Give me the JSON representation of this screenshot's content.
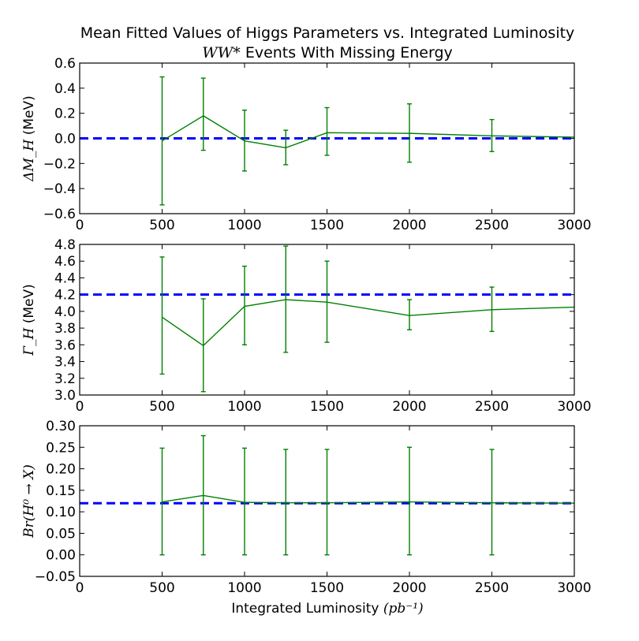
{
  "title": {
    "line1": "Mean Fitted Values of Higgs Parameters vs. Integrated Luminosity",
    "line2_math": "WW*",
    "line2_text": " Events With Missing Energy"
  },
  "xlabel_text": "Integrated Luminosity ",
  "xlabel_math": "(pb⁻¹)",
  "colors": {
    "series": "#008000",
    "reference": "#0000ff"
  },
  "chart_data": [
    {
      "type": "line",
      "error_bars": true,
      "ylabel_math": "ΔM_H",
      "ylabel_unit": "(MeV)",
      "x": [
        500,
        750,
        1000,
        1250,
        1500,
        2000,
        2500,
        3000
      ],
      "y": [
        -0.02,
        0.18,
        -0.02,
        -0.075,
        0.045,
        0.04,
        0.02,
        0.01
      ],
      "err_low": [
        -0.53,
        -0.095,
        -0.26,
        -0.21,
        -0.135,
        -0.19,
        -0.105,
        null
      ],
      "err_high": [
        0.49,
        0.48,
        0.225,
        0.065,
        0.245,
        0.275,
        0.15,
        null
      ],
      "reference": 0.0,
      "xlim": [
        0,
        3000
      ],
      "ylim": [
        -0.6,
        0.6
      ],
      "yticks": [
        -0.6,
        -0.4,
        -0.2,
        0.0,
        0.2,
        0.4,
        0.6
      ],
      "ytick_labels": [
        "−0.6",
        "−0.4",
        "−0.2",
        "0.0",
        "0.2",
        "0.4",
        "0.6"
      ],
      "xticks": [
        0,
        500,
        1000,
        1500,
        2000,
        2500,
        3000
      ],
      "xtick_labels": [
        "0",
        "500",
        "1000",
        "1500",
        "2000",
        "2500",
        "3000"
      ]
    },
    {
      "type": "line",
      "error_bars": true,
      "ylabel_math": "Γ_H",
      "ylabel_unit": "(MeV)",
      "x": [
        500,
        750,
        1000,
        1250,
        1500,
        2000,
        2500,
        3000
      ],
      "y": [
        3.93,
        3.59,
        4.06,
        4.14,
        4.11,
        3.95,
        4.02,
        4.05
      ],
      "err_low": [
        3.25,
        3.04,
        3.6,
        3.51,
        3.63,
        3.78,
        3.76,
        null
      ],
      "err_high": [
        4.65,
        4.15,
        4.54,
        4.78,
        4.6,
        4.14,
        4.29,
        null
      ],
      "reference": 4.2,
      "xlim": [
        0,
        3000
      ],
      "ylim": [
        3.0,
        4.8
      ],
      "yticks": [
        3.0,
        3.2,
        3.4,
        3.6,
        3.8,
        4.0,
        4.2,
        4.4,
        4.6,
        4.8
      ],
      "ytick_labels": [
        "3.0",
        "3.2",
        "3.4",
        "3.6",
        "3.8",
        "4.0",
        "4.2",
        "4.4",
        "4.6",
        "4.8"
      ],
      "xticks": [
        0,
        500,
        1000,
        1500,
        2000,
        2500,
        3000
      ],
      "xtick_labels": [
        "0",
        "500",
        "1000",
        "1500",
        "2000",
        "2500",
        "3000"
      ]
    },
    {
      "type": "line",
      "error_bars": true,
      "ylabel_math": "Br(H⁰ → X)",
      "ylabel_unit": "",
      "x": [
        500,
        750,
        1000,
        1250,
        1500,
        2000,
        2500,
        3000
      ],
      "y": [
        0.123,
        0.138,
        0.122,
        0.121,
        0.121,
        0.123,
        0.121,
        0.12
      ],
      "err_low": [
        0.0,
        0.0,
        0.0,
        0.0,
        0.0,
        0.0,
        0.0,
        null
      ],
      "err_high": [
        0.248,
        0.277,
        0.248,
        0.245,
        0.245,
        0.25,
        0.245,
        null
      ],
      "reference": 0.12,
      "xlim": [
        0,
        3000
      ],
      "ylim": [
        -0.05,
        0.3
      ],
      "yticks": [
        -0.05,
        0.0,
        0.05,
        0.1,
        0.15,
        0.2,
        0.25,
        0.3
      ],
      "ytick_labels": [
        "−0.05",
        "0.00",
        "0.05",
        "0.10",
        "0.15",
        "0.20",
        "0.25",
        "0.30"
      ],
      "xticks": [
        0,
        500,
        1000,
        1500,
        2000,
        2500,
        3000
      ],
      "xtick_labels": [
        "0",
        "500",
        "1000",
        "1500",
        "2000",
        "2500",
        "3000"
      ]
    }
  ]
}
